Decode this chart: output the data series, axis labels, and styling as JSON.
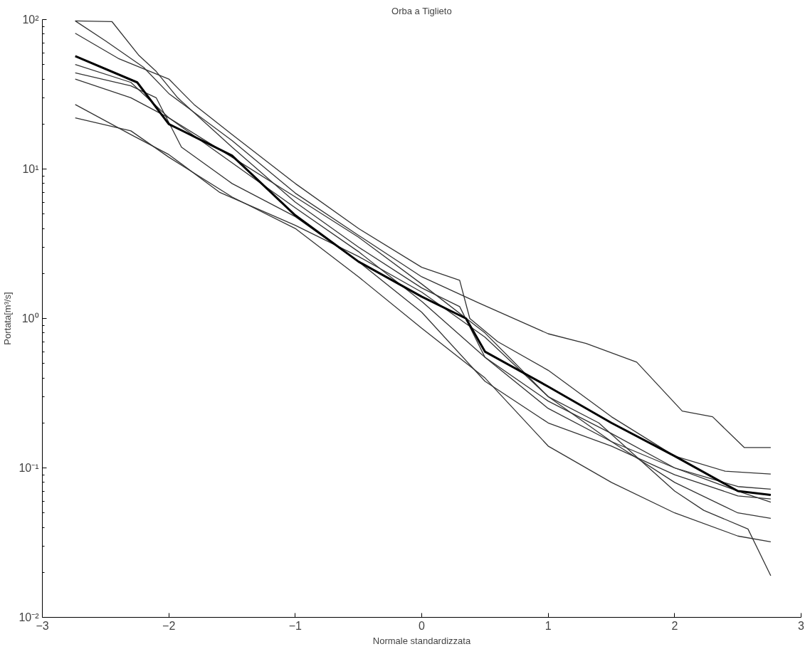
{
  "chart_data": {
    "type": "line",
    "title": "Orba a Tiglieto",
    "xlabel": "Normale standardizzata",
    "ylabel": "Portata[m³/s]",
    "log": true,
    "grid": false,
    "line_style": "solid",
    "marker": "none",
    "xlim": [
      -3,
      3
    ],
    "xticks": [
      -3,
      -2,
      -1,
      0,
      1,
      2,
      3
    ],
    "ylim": [
      0.01,
      100
    ],
    "yticks": [
      {
        "value": 0.01,
        "label": "10⁻²"
      },
      {
        "value": 0.1,
        "label": "10⁻¹"
      },
      {
        "value": 1,
        "label": "10⁰"
      },
      {
        "value": 10,
        "label": "10¹"
      },
      {
        "value": 100,
        "label": "10²"
      }
    ],
    "series": [
      {
        "color": "#333333",
        "x": [
          -2.74,
          -2.45,
          -2.24,
          -2.1,
          -1.93,
          -1.5,
          -1,
          -0.5,
          0,
          0.3,
          0.5,
          1,
          1.5,
          2,
          2.5,
          2.76
        ],
        "values": [
          98,
          97,
          58,
          45,
          30,
          14,
          6,
          3.0,
          1.6,
          1.2,
          0.55,
          0.25,
          0.15,
          0.1,
          0.075,
          0.072
        ]
      },
      {
        "color": "#333333",
        "x": [
          -2.74,
          -2.5,
          -2.2,
          -2,
          -1.5,
          -1,
          -0.5,
          0,
          0.45,
          1,
          1.3,
          1.7,
          2.06,
          2.3,
          2.55,
          2.76
        ],
        "values": [
          98,
          72,
          48,
          32,
          15.5,
          6.9,
          3.6,
          1.9,
          1.27,
          0.79,
          0.68,
          0.51,
          0.24,
          0.22,
          0.137,
          0.137
        ]
      },
      {
        "color": "#333333",
        "x": [
          -2.74,
          -2.4,
          -2,
          -1.8,
          -1.5,
          -1,
          -0.5,
          0,
          0.3,
          0.38,
          0.6,
          1,
          1.5,
          2,
          2.4,
          2.76
        ],
        "values": [
          81,
          55,
          40,
          27,
          17,
          8,
          4,
          2.2,
          1.8,
          1.0,
          0.7,
          0.45,
          0.22,
          0.12,
          0.095,
          0.091
        ]
      },
      {
        "color": "#333333",
        "x": [
          -2.74,
          -2.3,
          -2,
          -1.5,
          -1,
          -0.5,
          0,
          0.5,
          1,
          1.5,
          2,
          2.5,
          2.76
        ],
        "values": [
          50,
          38,
          22,
          11,
          5.5,
          2.8,
          1.3,
          0.55,
          0.28,
          0.17,
          0.1,
          0.07,
          0.059
        ]
      },
      {
        "color": "#333333",
        "x": [
          -2.74,
          -2.3,
          -2.1,
          -1.9,
          -1.5,
          -1,
          -0.5,
          0,
          0.5,
          1,
          1.5,
          2,
          2.5,
          2.76
        ],
        "values": [
          44,
          36,
          30,
          14,
          8,
          4.8,
          2.4,
          1.1,
          0.38,
          0.2,
          0.14,
          0.09,
          0.065,
          0.062
        ]
      },
      {
        "color": "#333333",
        "x": [
          -2.74,
          -2.3,
          -2,
          -1.5,
          -1,
          -0.5,
          0,
          0.5,
          1,
          1.4,
          2,
          2.23,
          2.58,
          2.76
        ],
        "values": [
          40,
          30,
          22,
          12,
          6.5,
          3.5,
          1.7,
          0.8,
          0.3,
          0.2,
          0.07,
          0.052,
          0.039,
          0.019
        ]
      },
      {
        "color": "#333333",
        "x": [
          -2.74,
          -2.3,
          -2,
          -1.6,
          -1,
          -0.5,
          0,
          0.5,
          1,
          1.5,
          2,
          2.5,
          2.76
        ],
        "values": [
          27,
          17,
          12.5,
          7,
          4.2,
          2.6,
          1.5,
          0.75,
          0.3,
          0.15,
          0.08,
          0.05,
          0.046
        ]
      },
      {
        "color": "#333333",
        "x": [
          -2.74,
          -2.3,
          -2,
          -1.5,
          -1,
          -0.5,
          0,
          0.5,
          1,
          1.5,
          2,
          2.5,
          2.76
        ],
        "values": [
          22,
          18,
          12,
          6.5,
          4,
          1.9,
          0.86,
          0.4,
          0.14,
          0.08,
          0.05,
          0.035,
          0.032
        ]
      },
      {
        "color": "#000000",
        "x": [
          -2.74,
          -2.25,
          -2,
          -1.5,
          -1,
          -0.5,
          0,
          0.35,
          0.5,
          1,
          1.5,
          2,
          2.5,
          2.76
        ],
        "values": [
          57,
          38,
          20,
          12.3,
          4.9,
          2.4,
          1.4,
          1.0,
          0.6,
          0.35,
          0.2,
          0.12,
          0.07,
          0.066
        ]
      }
    ]
  }
}
